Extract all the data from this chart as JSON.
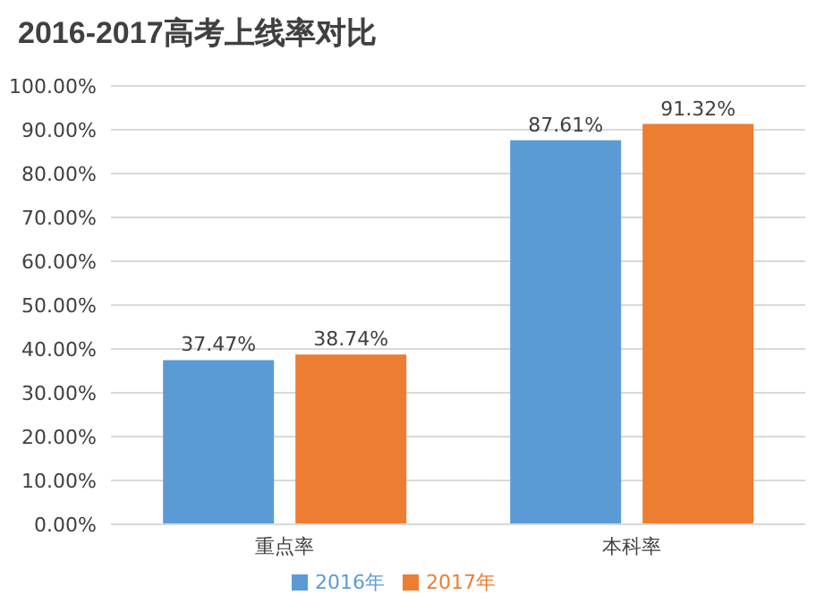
{
  "chart_data": {
    "type": "bar",
    "title": "2016-2017高考上线率对比",
    "categories": [
      "重点率",
      "本科率"
    ],
    "series": [
      {
        "name": "2016年",
        "color": "#5b9bd5",
        "values": [
          37.47,
          87.61
        ],
        "value_labels": [
          "37.47%",
          "87.61%"
        ]
      },
      {
        "name": "2017年",
        "color": "#ed7d31",
        "values": [
          38.74,
          91.32
        ],
        "value_labels": [
          "38.74%",
          "91.32%"
        ]
      }
    ],
    "ylim": [
      0,
      100
    ],
    "yticks": [
      {
        "value": 0,
        "label": "0.00%"
      },
      {
        "value": 10,
        "label": "10.00%"
      },
      {
        "value": 20,
        "label": "20.00%"
      },
      {
        "value": 30,
        "label": "30.00%"
      },
      {
        "value": 40,
        "label": "40.00%"
      },
      {
        "value": 50,
        "label": "50.00%"
      },
      {
        "value": 60,
        "label": "60.00%"
      },
      {
        "value": 70,
        "label": "70.00%"
      },
      {
        "value": 80,
        "label": "80.00%"
      },
      {
        "value": 90,
        "label": "90.00%"
      },
      {
        "value": 100,
        "label": "100.00%"
      }
    ],
    "grid": "y",
    "legend": "bottom"
  }
}
